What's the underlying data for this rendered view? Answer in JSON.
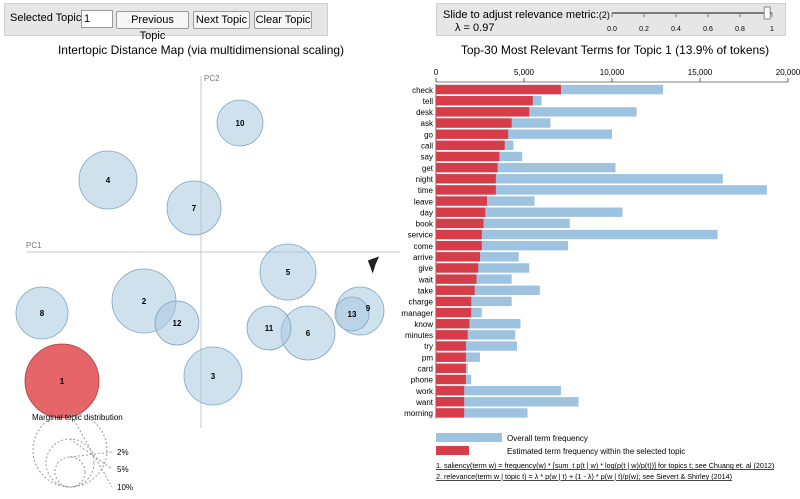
{
  "controls": {
    "selected_topic_label": "Selected Topic:",
    "topic_value": "1",
    "previous_label": "Previous Topic",
    "next_label": "Next Topic",
    "clear_label": "Clear Topic",
    "slider_label": "Slide to adjust relevance metric:",
    "slider_footnote_ref": "(2)",
    "lambda_text": "λ = 0.97",
    "lambda_value": 0.97,
    "slider_ticks": [
      "0.0",
      "0.2",
      "0.4",
      "0.6",
      "0.8",
      "1"
    ]
  },
  "intertopic": {
    "title": "Intertopic Distance Map (via multidimensional scaling)",
    "pc1_label": "PC1",
    "pc2_label": "PC2",
    "selected_color": "#e04a4f",
    "topic_color": "#a9c9e0",
    "topics": [
      {
        "label": "1",
        "selected": true
      },
      {
        "label": "2"
      },
      {
        "label": "3"
      },
      {
        "label": "4"
      },
      {
        "label": "5"
      },
      {
        "label": "6"
      },
      {
        "label": "7"
      },
      {
        "label": "8"
      },
      {
        "label": "9"
      },
      {
        "label": "10"
      },
      {
        "label": "11"
      },
      {
        "label": "12"
      },
      {
        "label": "13"
      }
    ],
    "marginal": {
      "title": "Marginal topic distribution",
      "levels": [
        {
          "label": "2%",
          "value": 2
        },
        {
          "label": "5%",
          "value": 5
        },
        {
          "label": "10%",
          "value": 10
        }
      ]
    }
  },
  "chart_data": {
    "type": "bar",
    "title": "Top-30 Most Relevant Terms for Topic 1 (13.9% of tokens)",
    "xlim": [
      0,
      20000
    ],
    "xticks": [
      "0",
      "5,000",
      "10,000",
      "15,000",
      "20,000"
    ],
    "categories": [
      "check",
      "tell",
      "desk",
      "ask",
      "go",
      "call",
      "say",
      "get",
      "night",
      "time",
      "leave",
      "day",
      "book",
      "service",
      "come",
      "arrive",
      "give",
      "wait",
      "take",
      "charge",
      "manager",
      "know",
      "minutes",
      "try",
      "pm",
      "card",
      "phone",
      "work",
      "want",
      "morning"
    ],
    "series": [
      {
        "name": "Overall term frequency",
        "color": "#9ec3e0",
        "values": [
          12900,
          6000,
          11400,
          6500,
          10000,
          4400,
          4900,
          10200,
          16300,
          18800,
          5600,
          10600,
          7600,
          16000,
          7500,
          4700,
          5300,
          4300,
          5900,
          4300,
          2600,
          4800,
          4500,
          4600,
          2500,
          1800,
          2000,
          7100,
          8100,
          5200
        ]
      },
      {
        "name": "Estimated term frequency within the selected topic",
        "color": "#d63d48",
        "values": [
          7100,
          5500,
          5300,
          4300,
          4100,
          3900,
          3600,
          3500,
          3400,
          3400,
          2900,
          2800,
          2700,
          2600,
          2600,
          2500,
          2400,
          2300,
          2200,
          2000,
          2000,
          1900,
          1800,
          1700,
          1700,
          1700,
          1700,
          1600,
          1600,
          1600
        ]
      }
    ],
    "legend": [
      "Overall term frequency",
      "Estimated term frequency within the selected topic"
    ],
    "footnotes": [
      "1. saliency(term w) = frequency(w) * [sum_t p(t | w) * log(p(t | w)/p(t))] for topics t; see Chuang et. al (2012)",
      "2. relevance(term w | topic t) = λ * p(w | t) + (1 - λ) * p(w | t)/p(w); see Sievert & Shirley (2014)"
    ]
  }
}
